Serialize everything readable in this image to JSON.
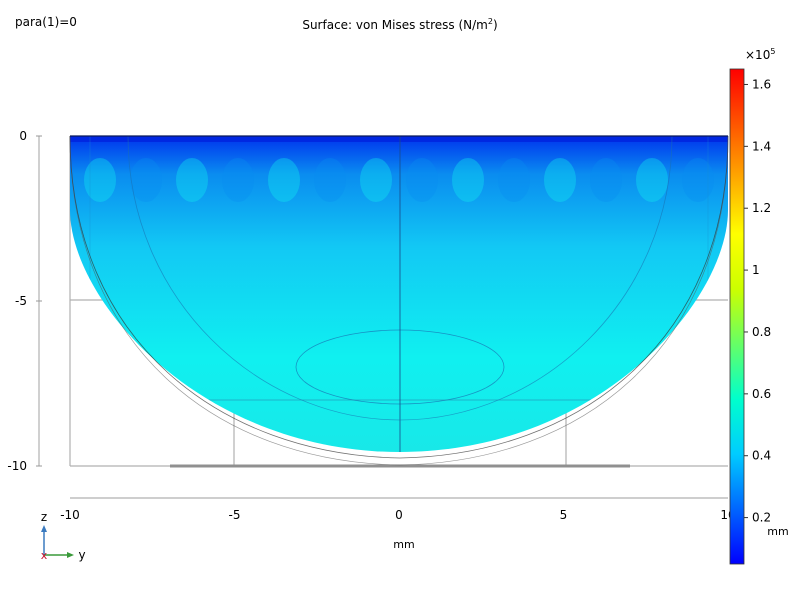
{
  "header": {
    "parameter_label": "para(1)=0",
    "title_prefix": "Surface: von Mises stress (N/m",
    "title_exponent": "2",
    "title_suffix": ")"
  },
  "plot": {
    "x_axis": {
      "unit_label": "mm",
      "ticks": [
        {
          "value": -10,
          "label": "-10"
        },
        {
          "value": -5,
          "label": "-5"
        },
        {
          "value": 0,
          "label": "0"
        },
        {
          "value": 5,
          "label": "5"
        },
        {
          "value": 10,
          "label": "10"
        }
      ]
    },
    "z_axis": {
      "unit_label": "mm",
      "ticks": [
        {
          "value": 0,
          "label": "0"
        },
        {
          "value": -5,
          "label": "-5"
        },
        {
          "value": -10,
          "label": "-10"
        }
      ]
    },
    "axis_triad": {
      "vertical_label": "z",
      "horizontal_label": "y",
      "vertical_color": "#3a7abf",
      "horizontal_color": "#3a9a3a",
      "origin_color": "#c8102e"
    }
  },
  "colorbar": {
    "multiplier_base": "×10",
    "multiplier_exponent": "5",
    "min_value": 0.05,
    "max_value": 1.65,
    "ticks": [
      {
        "value": 1.6,
        "label": "1.6"
      },
      {
        "value": 1.4,
        "label": "1.4"
      },
      {
        "value": 1.2,
        "label": "1.2"
      },
      {
        "value": 1.0,
        "label": "1"
      },
      {
        "value": 0.8,
        "label": "0.8"
      },
      {
        "value": 0.6,
        "label": "0.6"
      },
      {
        "value": 0.4,
        "label": "0.4"
      },
      {
        "value": 0.2,
        "label": "0.2"
      }
    ],
    "colors": [
      "#0000ff",
      "#0066ff",
      "#00ccff",
      "#00ffcc",
      "#66ff66",
      "#ccff00",
      "#ffff00",
      "#ffaa00",
      "#ff5500",
      "#ff0000"
    ]
  },
  "surface_colors": {
    "top_band": "#0033ee",
    "upper": "#0a8cf0",
    "middle": "#12c8f4",
    "lower": "#10f0f0",
    "bottom": "#18e8e8"
  }
}
